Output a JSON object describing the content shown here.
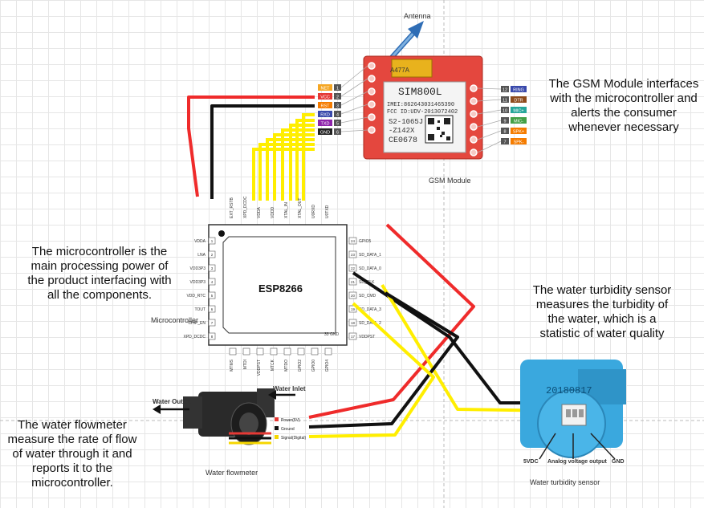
{
  "labels": {
    "antenna": "Antenna",
    "gsm_caption": "GSM Module",
    "micro_caption": "Microcontroller",
    "flow_caption": "Water flowmeter",
    "turbidity_caption": "Water turbidity sensor",
    "esp_title": "ESP8266"
  },
  "notes": {
    "gsm": "The GSM Module interfaces with the microcontroller and alerts the consumer whenever necessary",
    "micro": "The microcontroller is the main processing power of the product interfacing with all the components.",
    "turbidity": "The water turbidity sensor measures the turbidity of the water, which is a statistic of water quality",
    "flow": "The water flowmeter measure the rate of flow of water through it and reports it to the microcontroller."
  },
  "gsm": {
    "chip_label": "SIM800L",
    "imei": "IMEI:862643031465390",
    "fcc": "FCC ID:UDV-2013072402",
    "model1": "S2-1065J",
    "model2": "-Z142X",
    "ce": "CE0678",
    "capacitor": "A477A",
    "left_pins": [
      {
        "name": "NET",
        "num": "1",
        "color": "#f5a623"
      },
      {
        "name": "VCC",
        "num": "2",
        "color": "#e53935"
      },
      {
        "name": "RST",
        "num": "3",
        "color": "#f57c00"
      },
      {
        "name": "RXD",
        "num": "4",
        "color": "#3949ab"
      },
      {
        "name": "TXD",
        "num": "5",
        "color": "#8e24aa"
      },
      {
        "name": "GND",
        "num": "6",
        "color": "#222222"
      }
    ],
    "right_pins": [
      {
        "name": "RING",
        "num": "12",
        "color": "#3949ab"
      },
      {
        "name": "DTR",
        "num": "11",
        "color": "#8d4a1c"
      },
      {
        "name": "MIC+",
        "num": "10",
        "color": "#26a69a"
      },
      {
        "name": "MIC-",
        "num": "9",
        "color": "#43a047"
      },
      {
        "name": "SPK+",
        "num": "8",
        "color": "#f57c00"
      },
      {
        "name": "SPK-",
        "num": "7",
        "color": "#f57c00"
      }
    ]
  },
  "esp": {
    "left_pins": [
      "VDDA",
      "LNA",
      "VDD3P3",
      "VDD3P3",
      "VDD_RTC",
      "TOUT",
      "CHIP_EN",
      "XPD_DCDC"
    ],
    "left_nums": [
      "1",
      "2",
      "3",
      "4",
      "5",
      "6",
      "7",
      "8"
    ],
    "right_pins": [
      "GPIO5",
      "SD_DATA_1",
      "SD_DATA_0",
      "SD_CLK",
      "SD_CMD",
      "SD_DATA_3",
      "SD_DATA_2",
      "VDDPST"
    ],
    "right_nums": [
      "24",
      "23",
      "22",
      "21",
      "20",
      "19",
      "18",
      "17"
    ],
    "top_pins": [
      "EXT_RSTB",
      "XPD_DCDC",
      "VDDA",
      "VDDD",
      "XTAL_IN",
      "XTAL_OUT",
      "U0RXD",
      "U0TXD"
    ],
    "bottom_pins": [
      "MTMS",
      "MTDI",
      "VDDPST",
      "MTCK",
      "MTDO",
      "GPIO2",
      "GPIO0",
      "GPIO4"
    ],
    "gnd_label": "33 GND"
  },
  "flowmeter": {
    "outlet": "Water Outlet",
    "inlet": "Water Inlet",
    "wires": [
      {
        "label": "Power(5V)",
        "color": "#e53935"
      },
      {
        "label": "Ground",
        "color": "#111111"
      },
      {
        "label": "Signal(Digital)",
        "color": "#f5d600"
      }
    ]
  },
  "turbidity": {
    "serial": "20180817",
    "pin_labels": [
      "5VDC",
      "Analog voltage output",
      "GND"
    ]
  },
  "colors": {
    "wire_red": "#ef2b2b",
    "wire_black": "#111111",
    "wire_yellow": "#ffee00",
    "sensor_blue": "#3aa8de",
    "gsm_board": "#e4473e"
  }
}
